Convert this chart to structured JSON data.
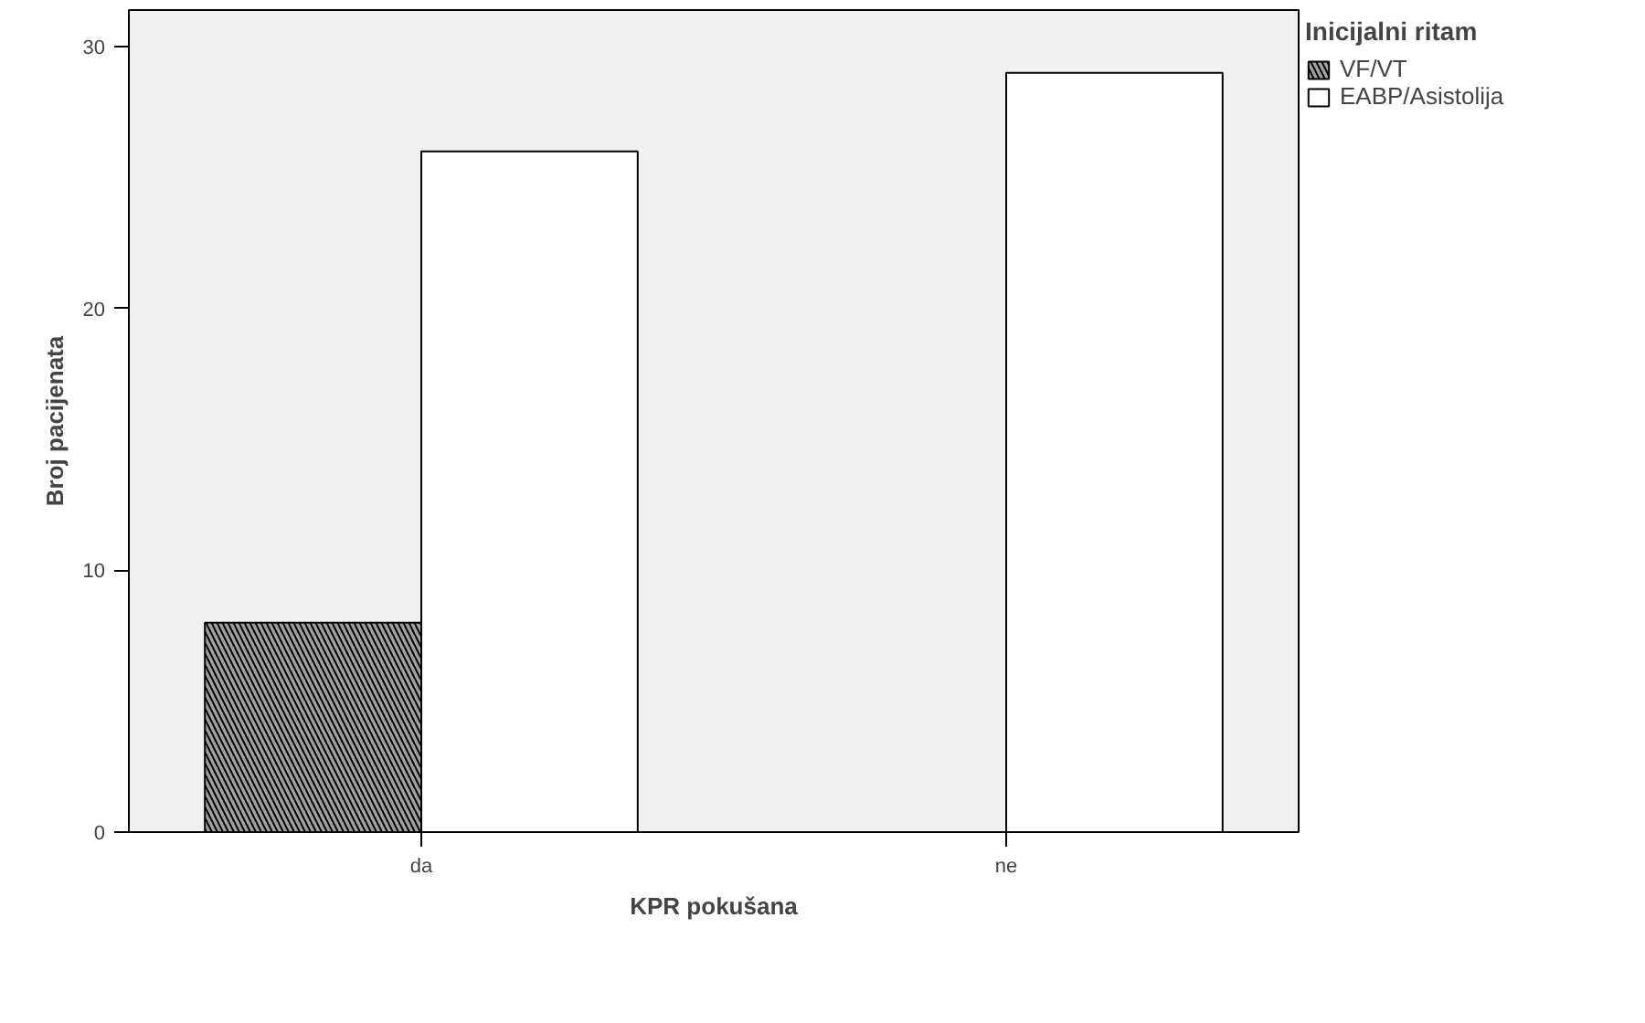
{
  "chart_data": {
    "type": "bar",
    "xlabel": "KPR pokušana",
    "ylabel": "Broj pacijenata",
    "legend_title": "Inicijalni ritam",
    "categories": [
      "da",
      "ne"
    ],
    "series": [
      {
        "name": "VF/VT",
        "color": "#a0a0a0",
        "values": [
          8,
          null
        ]
      },
      {
        "name": "EABP/Asistolija",
        "color": "#ffffff",
        "values": [
          26,
          29
        ]
      }
    ],
    "ylim": [
      0,
      31.4
    ],
    "yticks": [
      0,
      10,
      20,
      30
    ],
    "grid": false,
    "legend": "right"
  }
}
